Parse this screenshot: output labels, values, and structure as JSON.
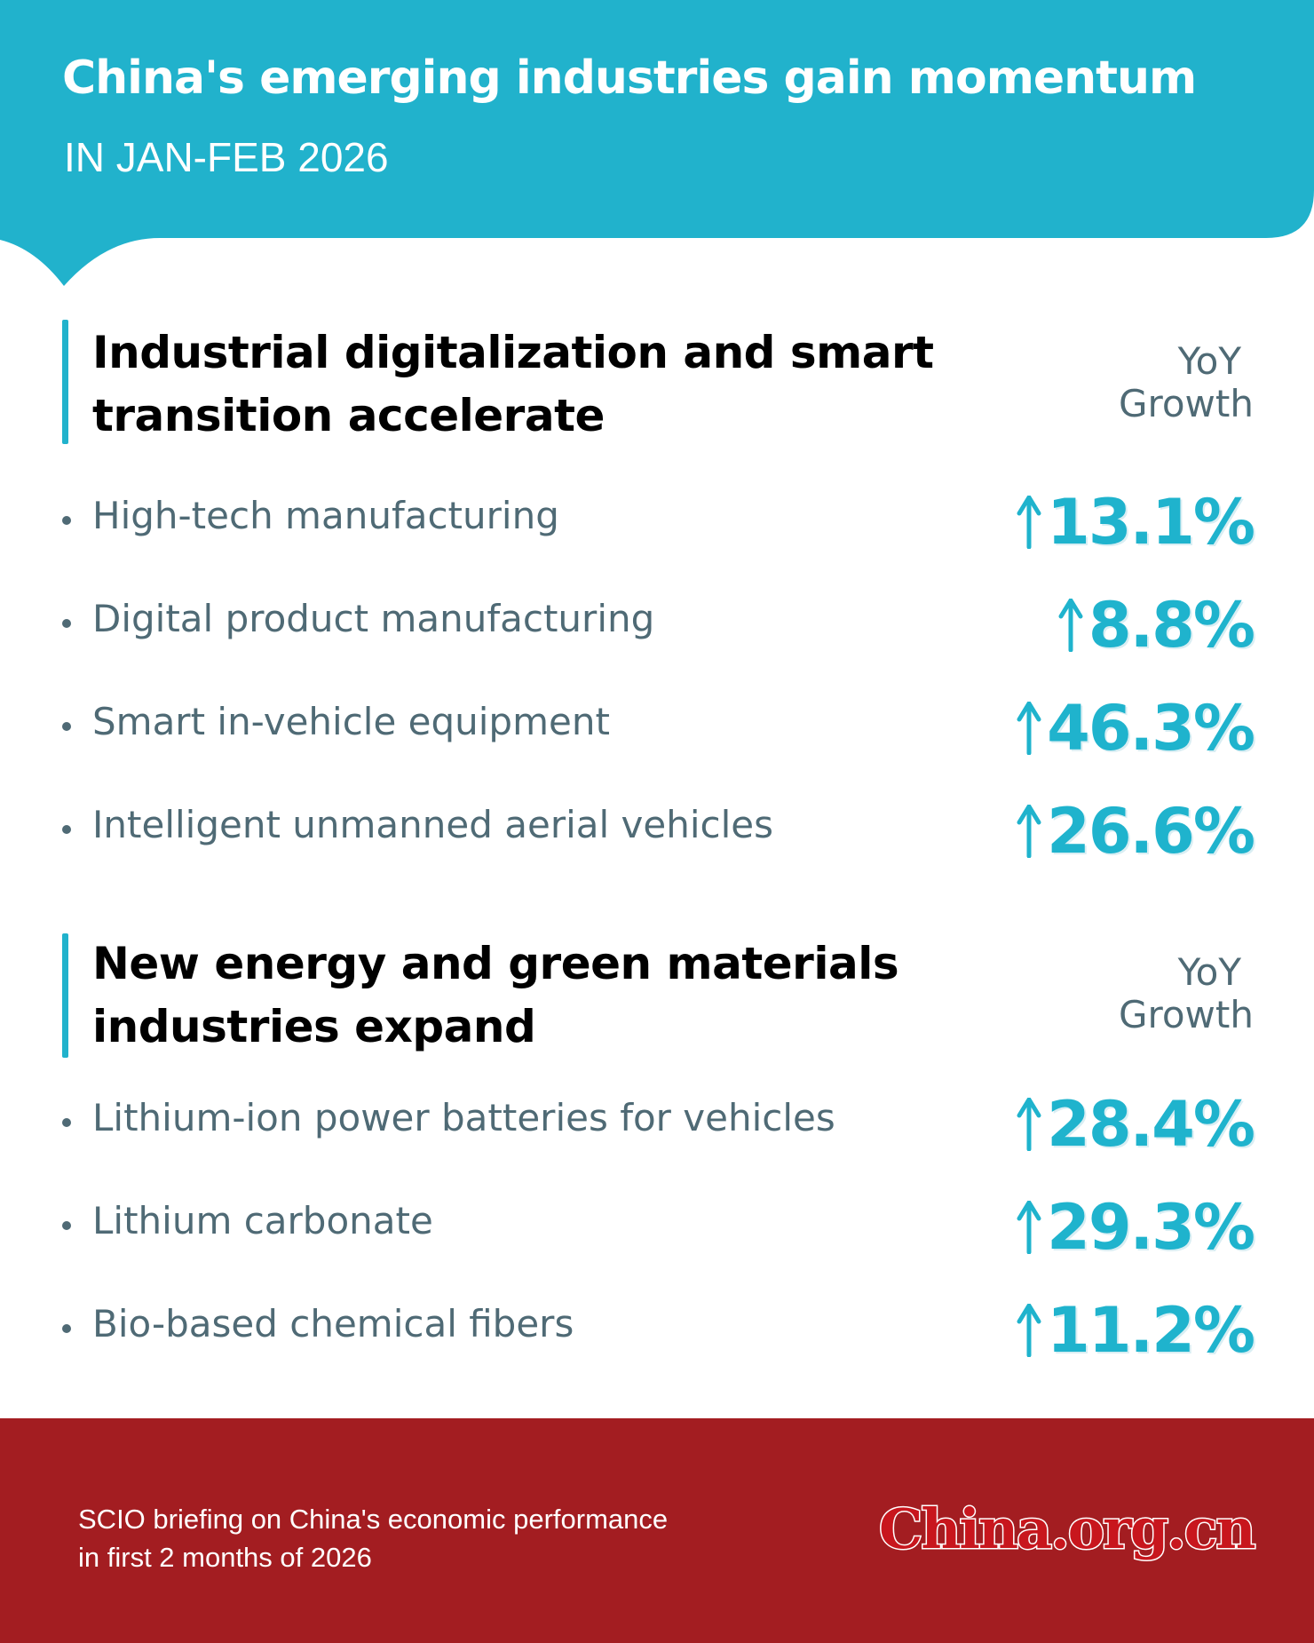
{
  "header": {
    "title": "China's emerging industries gain momentum",
    "subtitle": "IN JAN-FEB 2026"
  },
  "colors": {
    "teal": "#21b2cc",
    "value_teal": "#1fb3cd",
    "footer_red": "#a31d21",
    "text_gray": "#4f6a75"
  },
  "sections": [
    {
      "title_line1": "Industrial digitalization and smart",
      "title_line2": "transition accelerate",
      "col_header_line1": "YoY",
      "col_header_line2": "Growth",
      "items": [
        {
          "label": "High-tech manufacturing",
          "value": "13.1%",
          "icon": "up-arrow-icon"
        },
        {
          "label": "Digital product manufacturing",
          "value": "8.8%",
          "icon": "up-arrow-icon"
        },
        {
          "label": "Smart in-vehicle equipment",
          "value": "46.3%",
          "icon": "up-arrow-icon"
        },
        {
          "label": "Intelligent unmanned aerial vehicles",
          "value": "26.6%",
          "icon": "up-arrow-icon"
        }
      ]
    },
    {
      "title_line1": "New energy and green materials",
      "title_line2": "industries expand",
      "col_header_line1": "YoY",
      "col_header_line2": "Growth",
      "items": [
        {
          "label": "Lithium-ion power batteries for vehicles",
          "value": "28.4%",
          "icon": "up-arrow-icon"
        },
        {
          "label": "Lithium carbonate",
          "value": "29.3%",
          "icon": "up-arrow-icon"
        },
        {
          "label": "Bio-based chemical fibers",
          "value": "11.2%",
          "icon": "up-arrow-icon"
        }
      ]
    }
  ],
  "footer": {
    "source_line1": "SCIO briefing on China's economic performance",
    "source_line2": "in first 2 months of 2026",
    "logo_text": "China.org.cn"
  }
}
